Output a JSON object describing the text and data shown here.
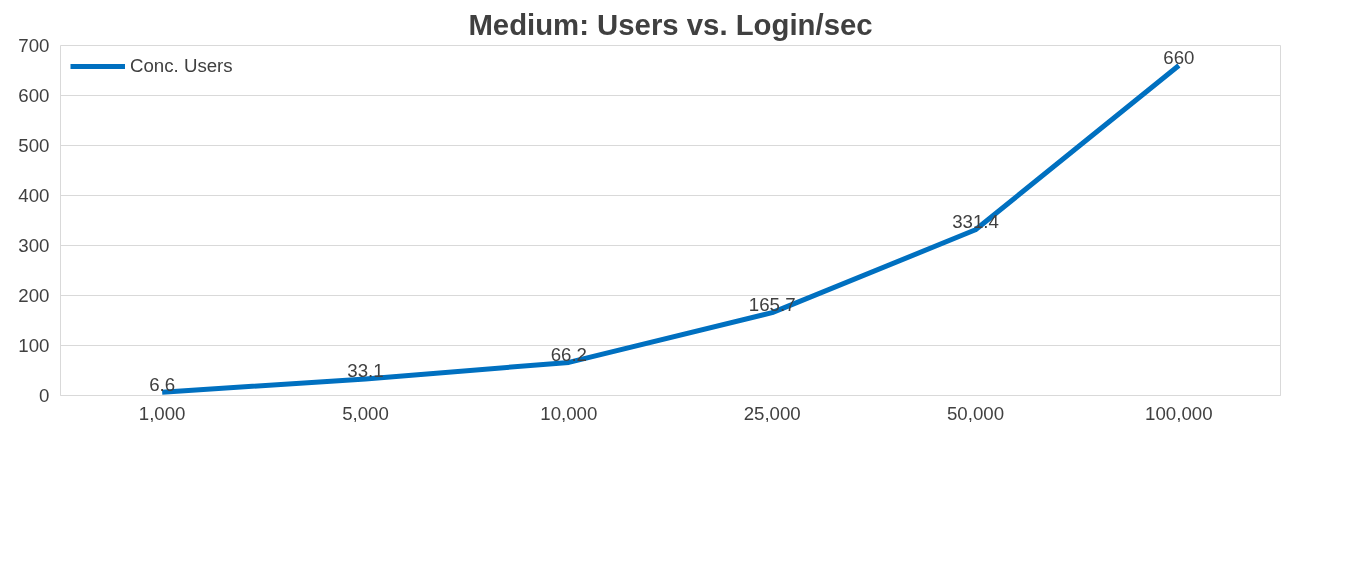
{
  "chart_data": {
    "type": "line",
    "title": "Medium: Users vs. Login/sec",
    "categories": [
      "1,000",
      "5,000",
      "10,000",
      "25,000",
      "50,000",
      "100,000"
    ],
    "series": [
      {
        "name": "Conc. Users",
        "color": "#0070c0",
        "values": [
          6.6,
          33.1,
          66.2,
          165.7,
          331.4,
          660
        ]
      }
    ],
    "ylim": [
      0,
      700
    ],
    "yticks": [
      0,
      100,
      200,
      300,
      400,
      500,
      600,
      700
    ],
    "grid": "y",
    "legend": "top left",
    "data_labels": true,
    "marker": "none",
    "line_style": "solid"
  }
}
